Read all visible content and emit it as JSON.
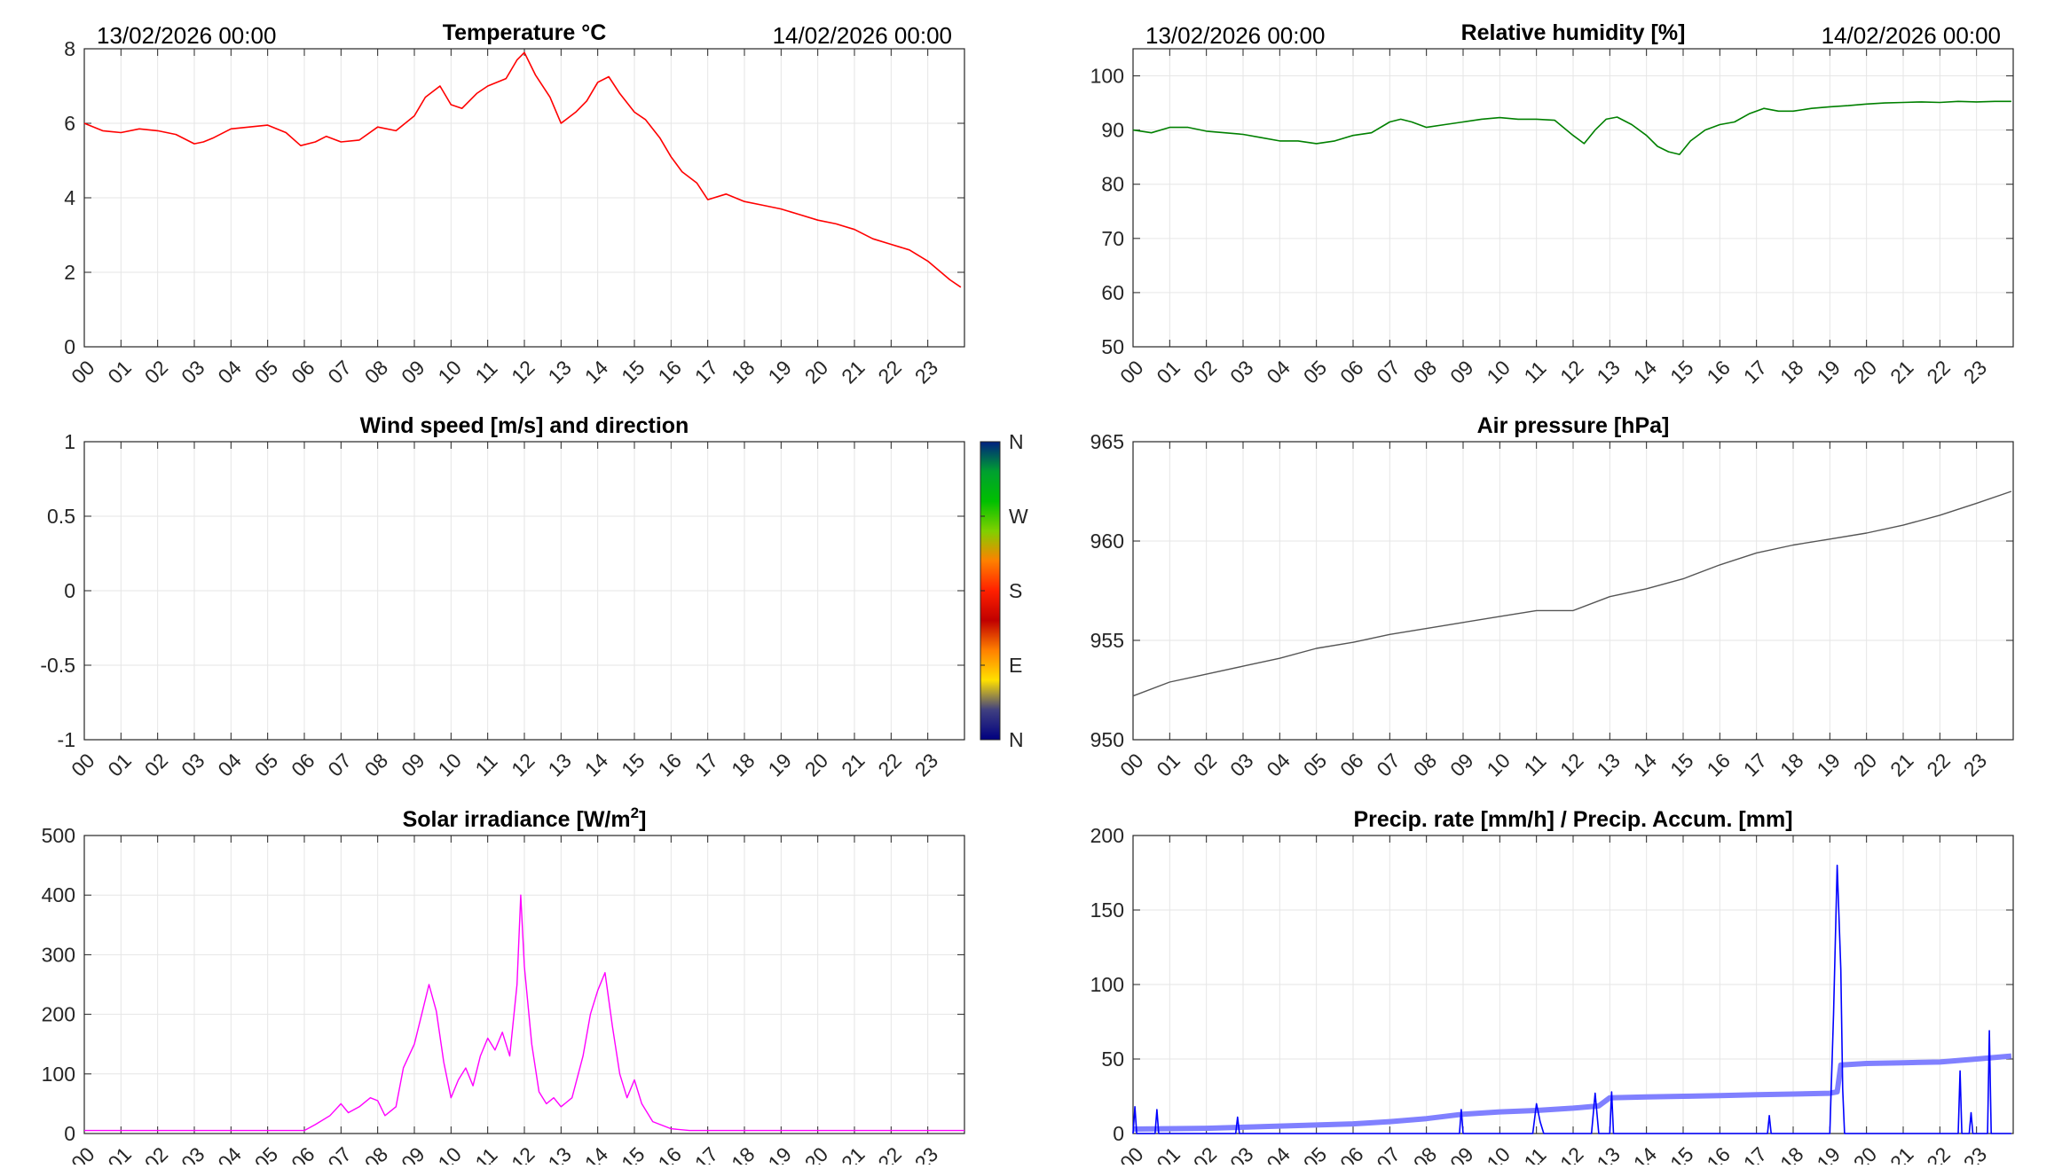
{
  "hour_labels": [
    "00",
    "01",
    "02",
    "03",
    "04",
    "05",
    "06",
    "07",
    "08",
    "09",
    "10",
    "11",
    "12",
    "13",
    "14",
    "15",
    "16",
    "17",
    "18",
    "19",
    "20",
    "21",
    "22",
    "23"
  ],
  "colors": {
    "grid": "#e6e6e6",
    "axis": "#262626",
    "temperature": "#ff0000",
    "humidity": "#008000",
    "pressure": "#555555",
    "solar": "#ff00ff",
    "precip_rate": "#0000ff",
    "precip_accum": "#8080ff"
  },
  "chart_data": [
    {
      "id": "temperature",
      "type": "line",
      "title": "Temperature °C",
      "header_left": "13/02/2026 00:00",
      "header_right": "14/02/2026 00:00",
      "xlim": [
        0,
        24
      ],
      "ylim": [
        0,
        8
      ],
      "yticks": [
        0,
        2,
        4,
        6,
        8
      ],
      "x": [
        0,
        0.5,
        1,
        1.5,
        2,
        2.5,
        3,
        3.25,
        3.5,
        4,
        4.5,
        5,
        5.5,
        5.9,
        6.3,
        6.6,
        7,
        7.5,
        8,
        8.5,
        9,
        9.3,
        9.7,
        10,
        10.3,
        10.7,
        11,
        11.5,
        11.8,
        12,
        12.3,
        12.7,
        13,
        13.4,
        13.7,
        14,
        14.3,
        14.6,
        15,
        15.3,
        15.7,
        16,
        16.3,
        16.7,
        17,
        17.5,
        18,
        18.5,
        19,
        19.5,
        20,
        20.5,
        21,
        21.5,
        22,
        22.5,
        23,
        23.3,
        23.6,
        23.9
      ],
      "y": [
        6.0,
        5.8,
        5.75,
        5.85,
        5.8,
        5.7,
        5.45,
        5.5,
        5.6,
        5.85,
        5.9,
        5.95,
        5.75,
        5.4,
        5.5,
        5.65,
        5.5,
        5.55,
        5.9,
        5.8,
        6.2,
        6.7,
        7.0,
        6.5,
        6.4,
        6.8,
        7.0,
        7.2,
        7.7,
        7.9,
        7.3,
        6.7,
        6.0,
        6.3,
        6.6,
        7.1,
        7.25,
        6.8,
        6.3,
        6.1,
        5.6,
        5.1,
        4.7,
        4.4,
        3.95,
        4.1,
        3.9,
        3.8,
        3.7,
        3.55,
        3.4,
        3.3,
        3.15,
        2.9,
        2.75,
        2.6,
        2.3,
        2.05,
        1.8,
        1.6
      ],
      "series_name": ""
    },
    {
      "id": "humidity",
      "type": "line",
      "title": "Relative humidity [%]",
      "header_left": "13/02/2026 00:00",
      "header_right": "14/02/2026 00:00",
      "xlim": [
        0,
        24
      ],
      "ylim": [
        50,
        105
      ],
      "yticks": [
        50,
        60,
        70,
        80,
        90,
        100
      ],
      "x": [
        0,
        0.5,
        1,
        1.5,
        2,
        2.5,
        3,
        3.5,
        4,
        4.5,
        5,
        5.5,
        6,
        6.5,
        7,
        7.3,
        7.6,
        8,
        8.5,
        9,
        9.5,
        10,
        10.5,
        11,
        11.5,
        12,
        12.3,
        12.6,
        12.9,
        13.2,
        13.6,
        14,
        14.3,
        14.6,
        14.9,
        15.2,
        15.6,
        16,
        16.4,
        16.8,
        17.2,
        17.6,
        18,
        18.5,
        19,
        19.5,
        20,
        20.5,
        21,
        21.5,
        22,
        22.5,
        23,
        23.5,
        23.95
      ],
      "y": [
        90,
        89.5,
        90.5,
        90.5,
        89.8,
        89.5,
        89.2,
        88.6,
        88,
        88,
        87.5,
        88,
        89,
        89.5,
        91.5,
        92,
        91.5,
        90.5,
        91,
        91.5,
        92,
        92.3,
        92,
        92,
        91.8,
        89,
        87.5,
        90,
        92,
        92.4,
        91,
        89,
        87,
        86,
        85.5,
        88,
        90,
        91,
        91.5,
        93,
        94,
        93.5,
        93.5,
        94,
        94.3,
        94.5,
        94.8,
        95,
        95.1,
        95.2,
        95.1,
        95.3,
        95.2,
        95.3,
        95.3
      ],
      "series_name": ""
    },
    {
      "id": "wind",
      "type": "scatter",
      "title": "Wind speed [m/s] and direction",
      "xlim": [
        0,
        24
      ],
      "ylim": [
        -1,
        1
      ],
      "yticks": [
        -1,
        -0.5,
        0,
        0.5,
        1
      ],
      "ytick_labels": [
        "-1",
        "-0.5",
        "0",
        "0.5",
        "1"
      ],
      "x": [],
      "y": [],
      "colorbar_labels": [
        "N",
        "W",
        "S",
        "E",
        "N"
      ],
      "colorbar_colors": [
        "#002080",
        "#00a030",
        "#00c000",
        "#80d000",
        "#ff8000",
        "#ff2000",
        "#c00000",
        "#ff8000",
        "#ffe000",
        "#404080",
        "#000080"
      ]
    },
    {
      "id": "pressure",
      "type": "line",
      "title": "Air pressure [hPa]",
      "xlim": [
        0,
        24
      ],
      "ylim": [
        950,
        965
      ],
      "yticks": [
        950,
        955,
        960,
        965
      ],
      "x": [
        0,
        1,
        2,
        3,
        4,
        5,
        6,
        7,
        8,
        9,
        10,
        11,
        12,
        13,
        14,
        15,
        16,
        17,
        18,
        19,
        20,
        21,
        22,
        23,
        23.95
      ],
      "y": [
        952.2,
        952.9,
        953.3,
        953.7,
        954.1,
        954.6,
        954.9,
        955.3,
        955.6,
        955.9,
        956.2,
        956.5,
        956.5,
        957.2,
        957.6,
        958.1,
        958.8,
        959.4,
        959.8,
        960.1,
        960.4,
        960.8,
        961.3,
        961.9,
        962.5
      ],
      "series_name": ""
    },
    {
      "id": "solar",
      "type": "line",
      "title": "Solar irradiance [W/m",
      "title_sup": "2",
      "title_suffix": "]",
      "xlim": [
        0,
        24
      ],
      "ylim": [
        0,
        500
      ],
      "yticks": [
        0,
        100,
        200,
        300,
        400,
        500
      ],
      "x": [
        0,
        6,
        6.3,
        6.7,
        7,
        7.2,
        7.5,
        7.8,
        8,
        8.2,
        8.5,
        8.7,
        9,
        9.2,
        9.4,
        9.6,
        9.8,
        10,
        10.2,
        10.4,
        10.6,
        10.8,
        11,
        11.2,
        11.4,
        11.6,
        11.8,
        11.9,
        12,
        12.2,
        12.4,
        12.6,
        12.8,
        13,
        13.3,
        13.6,
        13.8,
        14,
        14.2,
        14.4,
        14.6,
        14.8,
        15,
        15.2,
        15.5,
        16,
        16.5,
        24
      ],
      "y": [
        5,
        5,
        15,
        30,
        50,
        35,
        45,
        60,
        55,
        30,
        45,
        110,
        150,
        200,
        250,
        205,
        120,
        60,
        90,
        110,
        80,
        130,
        160,
        140,
        170,
        130,
        250,
        400,
        280,
        150,
        70,
        50,
        60,
        45,
        60,
        130,
        200,
        240,
        270,
        180,
        100,
        60,
        90,
        50,
        20,
        8,
        5,
        5
      ],
      "series_name": ""
    },
    {
      "id": "precip",
      "type": "line",
      "title": "Precip. rate [mm/h] / Precip. Accum. [mm]",
      "xlim": [
        0,
        24
      ],
      "ylim": [
        0,
        200
      ],
      "yticks": [
        0,
        50,
        100,
        150,
        200
      ],
      "series": [
        {
          "name": "Precip. rate",
          "x": [
            0,
            0.05,
            0.1,
            0.6,
            0.65,
            0.7,
            2.8,
            2.85,
            2.9,
            8.9,
            8.95,
            9.0,
            10.9,
            11.0,
            11.1,
            11.2,
            12.5,
            12.6,
            12.7,
            13.0,
            13.05,
            13.1,
            17.3,
            17.35,
            17.4,
            19.0,
            19.1,
            19.2,
            19.3,
            19.35,
            19.4,
            19.5,
            22.5,
            22.55,
            22.6,
            22.8,
            22.85,
            22.9,
            23.3,
            23.35,
            23.4,
            23.95
          ],
          "y": [
            0,
            18,
            0,
            0,
            16,
            0,
            0,
            11,
            0,
            0,
            16,
            0,
            0,
            20,
            8,
            0,
            0,
            27,
            0,
            0,
            28,
            0,
            0,
            12,
            0,
            0,
            80,
            180,
            110,
            30,
            0,
            0,
            0,
            42,
            0,
            0,
            14,
            0,
            0,
            69,
            0,
            0
          ]
        },
        {
          "name": "Precip. Accum.",
          "x": [
            0,
            2,
            4,
            6,
            7,
            8,
            9,
            10,
            11,
            12,
            12.7,
            13,
            14,
            15,
            16,
            17,
            18,
            19,
            19.2,
            19.3,
            20,
            21,
            22,
            23,
            23.95
          ],
          "y": [
            3,
            3.5,
            5,
            6.5,
            8,
            10,
            13,
            14.5,
            15.5,
            17,
            18.5,
            24,
            24.5,
            25,
            25.5,
            26,
            26.5,
            27,
            28,
            46,
            47,
            47.5,
            48,
            50,
            52
          ]
        }
      ]
    }
  ]
}
